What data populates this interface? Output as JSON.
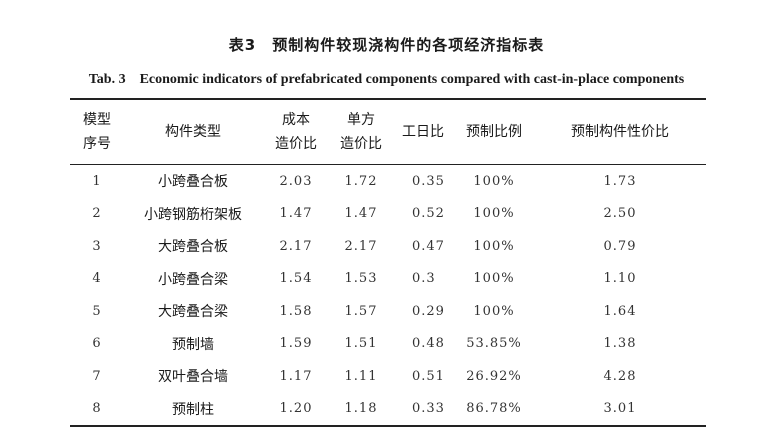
{
  "title_cn": "表3　预制构件较现浇构件的各项经济指标表",
  "title_en": "Tab. 3　Economic indicators of prefabricated components compared with cast-in-place components",
  "headers": {
    "model_no": [
      "模型",
      "序号"
    ],
    "component_type": "构件类型",
    "cost_ratio": [
      "成本",
      "造价比"
    ],
    "unit_cost_ratio": [
      "单方",
      "造价比"
    ],
    "workday_ratio": "工日比",
    "prefab_ratio": "预制比例",
    "cost_performance": "预制构件性价比"
  },
  "rows": [
    {
      "no": "1",
      "type": "小跨叠合板",
      "cost": "2.03",
      "unit": "1.72",
      "workday": "0.35",
      "prefab": "100%",
      "perf": "1.73"
    },
    {
      "no": "2",
      "type": "小跨钢筋桁架板",
      "cost": "1.47",
      "unit": "1.47",
      "workday": "0.52",
      "prefab": "100%",
      "perf": "2.50"
    },
    {
      "no": "3",
      "type": "大跨叠合板",
      "cost": "2.17",
      "unit": "2.17",
      "workday": "0.47",
      "prefab": "100%",
      "perf": "0.79"
    },
    {
      "no": "4",
      "type": "小跨叠合梁",
      "cost": "1.54",
      "unit": "1.53",
      "workday": "0.3",
      "prefab": "100%",
      "perf": "1.10"
    },
    {
      "no": "5",
      "type": "大跨叠合梁",
      "cost": "1.58",
      "unit": "1.57",
      "workday": "0.29",
      "prefab": "100%",
      "perf": "1.64"
    },
    {
      "no": "6",
      "type": "预制墙",
      "cost": "1.59",
      "unit": "1.51",
      "workday": "0.48",
      "prefab": "53.85%",
      "perf": "1.38"
    },
    {
      "no": "7",
      "type": "双叶叠合墙",
      "cost": "1.17",
      "unit": "1.11",
      "workday": "0.51",
      "prefab": "26.92%",
      "perf": "4.28"
    },
    {
      "no": "8",
      "type": "预制柱",
      "cost": "1.20",
      "unit": "1.18",
      "workday": "0.33",
      "prefab": "86.78%",
      "perf": "3.01"
    }
  ]
}
